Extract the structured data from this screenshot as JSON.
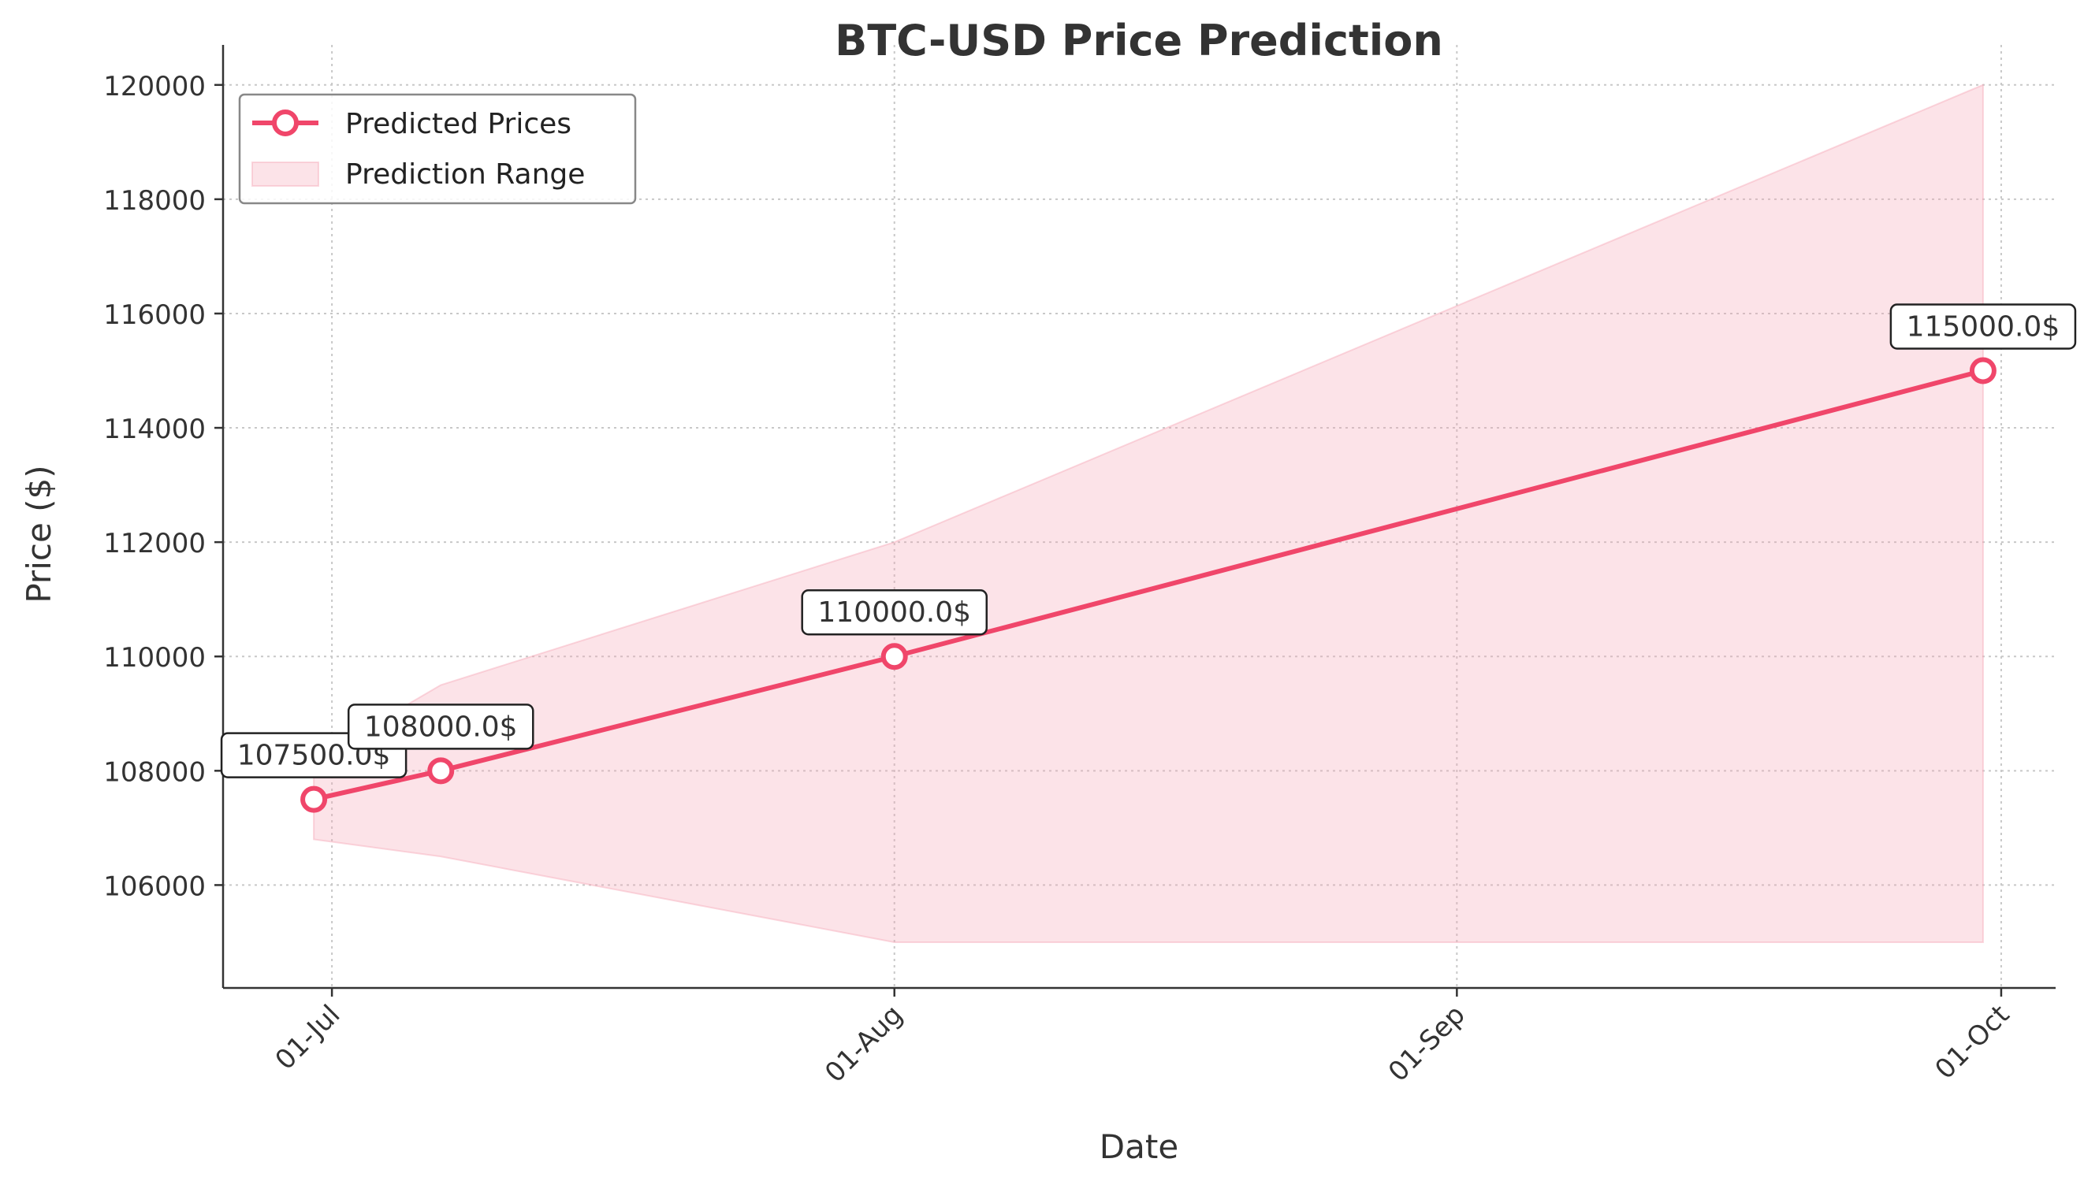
{
  "chart_data": {
    "type": "line",
    "title": "BTC-USD Price Prediction",
    "xlabel": "Date",
    "ylabel": "Price ($)",
    "x_type": "date",
    "xlim": [
      "2025-06-25",
      "2025-10-04"
    ],
    "ylim": [
      104200,
      120700
    ],
    "x_ticks": [
      {
        "date": "2025-07-01",
        "label": "01-Jul"
      },
      {
        "date": "2025-08-01",
        "label": "01-Aug"
      },
      {
        "date": "2025-09-01",
        "label": "01-Sep"
      },
      {
        "date": "2025-10-01",
        "label": "01-Oct"
      }
    ],
    "y_ticks": [
      {
        "value": 106000,
        "label": "106000"
      },
      {
        "value": 108000,
        "label": "108000"
      },
      {
        "value": 110000,
        "label": "110000"
      },
      {
        "value": 112000,
        "label": "112000"
      },
      {
        "value": 114000,
        "label": "114000"
      },
      {
        "value": 116000,
        "label": "116000"
      },
      {
        "value": 118000,
        "label": "118000"
      },
      {
        "value": 120000,
        "label": "120000"
      }
    ],
    "grid": true,
    "legend_position": "top-left",
    "series": [
      {
        "name": "Predicted Prices",
        "type": "line",
        "color": "#f0466a",
        "points": [
          {
            "x": "2025-06-30",
            "y": 107500,
            "label": "107500.0$"
          },
          {
            "x": "2025-07-07",
            "y": 108000,
            "label": "108000.0$"
          },
          {
            "x": "2025-08-01",
            "y": 110000,
            "label": "110000.0$"
          },
          {
            "x": "2025-09-30",
            "y": 115000,
            "label": "115000.0$"
          }
        ]
      },
      {
        "name": "Prediction Range",
        "type": "band",
        "color": "#f7a8b8",
        "points": [
          {
            "x": "2025-06-30",
            "low": 106800,
            "high": 108200
          },
          {
            "x": "2025-07-07",
            "low": 106500,
            "high": 109500
          },
          {
            "x": "2025-08-01",
            "low": 105000,
            "high": 112000
          },
          {
            "x": "2025-09-30",
            "low": 105000,
            "high": 120000
          }
        ]
      }
    ]
  }
}
